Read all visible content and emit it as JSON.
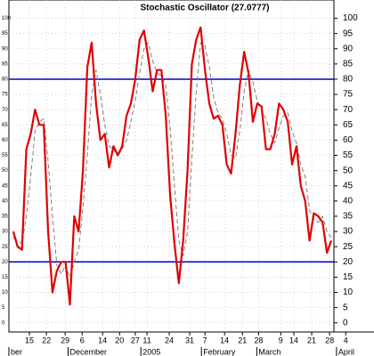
{
  "chart_data": {
    "type": "line",
    "title": "Stochastic Oscillator (27.0777)",
    "x": [
      0,
      1,
      2,
      3,
      4,
      5,
      6,
      7,
      8,
      9,
      10,
      11,
      12,
      13,
      14,
      15,
      16,
      17,
      18,
      19,
      20,
      21,
      22,
      23,
      24,
      25,
      26,
      27,
      28,
      29,
      30,
      31,
      32,
      33,
      34,
      35,
      36,
      37,
      38,
      39,
      40,
      41,
      42,
      43,
      44,
      45,
      46,
      47,
      48,
      49,
      50,
      51,
      52,
      53,
      54,
      55,
      56,
      57,
      58,
      59,
      60,
      61,
      62,
      63,
      64,
      65,
      66,
      67,
      68,
      69,
      70,
      71,
      72,
      73
    ],
    "series": [
      {
        "color": "#e00000",
        "dashed": false,
        "values": [
          30,
          25,
          24,
          57,
          62,
          70,
          65,
          65,
          30,
          10,
          17,
          20,
          20,
          6,
          35,
          30,
          50,
          84,
          92,
          72,
          60,
          62,
          51,
          58,
          55,
          58,
          68,
          72,
          80,
          93,
          96,
          87,
          76,
          83,
          83,
          68,
          42,
          26,
          13,
          27,
          50,
          85,
          93,
          97,
          83,
          72,
          67,
          68,
          65,
          52,
          49,
          62,
          78,
          89,
          82,
          66,
          72,
          71,
          57,
          57,
          62,
          72,
          70,
          66,
          52,
          58,
          45,
          40,
          27,
          36,
          35,
          33,
          23,
          27
        ]
      },
      {
        "color": "#808080",
        "dashed": true,
        "values": [
          28,
          27,
          26,
          35,
          48,
          63,
          66,
          67,
          53,
          35,
          19,
          16,
          19,
          15,
          20,
          24,
          38,
          55,
          75,
          83,
          75,
          65,
          58,
          57,
          55,
          57,
          60,
          66,
          73,
          82,
          90,
          92,
          86,
          82,
          81,
          78,
          64,
          45,
          27,
          22,
          30,
          54,
          76,
          92,
          91,
          84,
          74,
          69,
          67,
          62,
          55,
          54,
          63,
          76,
          83,
          79,
          73,
          70,
          67,
          62,
          59,
          64,
          68,
          69,
          63,
          59,
          52,
          48,
          37,
          34,
          33,
          35,
          30,
          28
        ]
      }
    ],
    "levels": [
      80,
      20
    ],
    "level_color": "#0000cc",
    "xlim": [
      -1,
      73.6
    ],
    "ylim": [
      -3,
      106
    ],
    "yticks": [
      0,
      5,
      10,
      15,
      20,
      25,
      30,
      35,
      40,
      45,
      50,
      55,
      60,
      65,
      70,
      75,
      80,
      85,
      90,
      95,
      100
    ],
    "xticks": [
      {
        "value": 3.7,
        "label": "15"
      },
      {
        "value": 7.6,
        "label": "22"
      },
      {
        "value": 11.9,
        "label": "29"
      },
      {
        "value": 15.8,
        "label": "6"
      },
      {
        "value": 20.5,
        "label": "14"
      },
      {
        "value": 24.4,
        "label": "20"
      },
      {
        "value": 28,
        "label": "27"
      },
      {
        "value": 30.7,
        "label": "11"
      },
      {
        "value": 35.8,
        "label": "24"
      },
      {
        "value": 40.5,
        "label": "31"
      },
      {
        "value": 44,
        "label": "7"
      },
      {
        "value": 48.5,
        "label": "14"
      },
      {
        "value": 52.6,
        "label": "21"
      },
      {
        "value": 56.3,
        "label": "28"
      },
      {
        "value": 61.4,
        "label": "9"
      },
      {
        "value": 64.4,
        "label": "14"
      },
      {
        "value": 68.5,
        "label": "21"
      },
      {
        "value": 72.6,
        "label": "28"
      },
      {
        "value": 76.3,
        "label": "4"
      }
    ],
    "month_ticks": [
      {
        "value": -0.6,
        "label": "ber"
      },
      {
        "value": 13,
        "label": "December"
      },
      {
        "value": 29.7,
        "label": "2005"
      },
      {
        "value": 43.6,
        "label": "February"
      },
      {
        "value": 56.3,
        "label": "March"
      },
      {
        "value": 74.6,
        "label": "April"
      }
    ],
    "grid": true
  }
}
